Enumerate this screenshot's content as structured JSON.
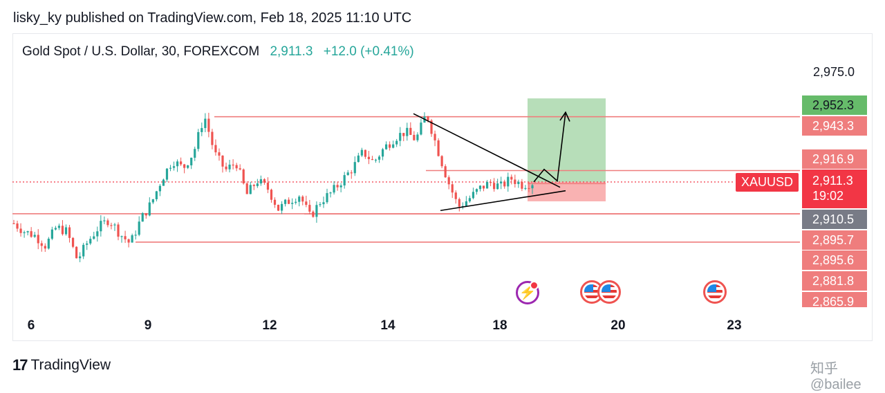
{
  "header": {
    "published_by": "lisky_ky published on TradingView.com, Feb 18, 2025 11:10 UTC",
    "symbol_desc": "Gold Spot / U.S. Dollar, 30, FOREXCOM",
    "last_price": "2,911.3",
    "change": "+12.0 (+0.41%)"
  },
  "price_scale": {
    "top_label": "2,975.0",
    "tags": [
      {
        "label": "2,952.3",
        "kind": "green"
      },
      {
        "label": "2,943.3",
        "kind": "red"
      },
      {
        "label": "2,916.9",
        "kind": "red"
      },
      {
        "label": "2,910.5",
        "kind": "gray"
      },
      {
        "label": "2,895.7",
        "kind": "red"
      },
      {
        "label": "2,895.6",
        "kind": "red"
      },
      {
        "label": "2,881.8",
        "kind": "red"
      },
      {
        "label": "2,865.9",
        "kind": "red"
      }
    ],
    "last": {
      "symbol": "XAUUSD",
      "price": "2,911.3",
      "countdown": "19:02"
    }
  },
  "time_scale": [
    "6",
    "9",
    "12",
    "14",
    "18",
    "20",
    "23"
  ],
  "events": [
    {
      "name": "earnings-event-icon",
      "type": "bolt"
    },
    {
      "name": "us-flag-event-icon",
      "type": "flag"
    },
    {
      "name": "us-flag-event-icon",
      "type": "flag"
    },
    {
      "name": "us-flag-event-icon",
      "type": "flag"
    }
  ],
  "footer": {
    "brand": "TradingView",
    "brand_mark": "17",
    "watermark": "知乎 @bailee"
  },
  "colors": {
    "up": "#26a69a",
    "down": "#ef5350",
    "level_line": "#ef7d7d",
    "target_zone": "#a5d6a7",
    "stop_zone": "#f8a5a5"
  },
  "chart_data": {
    "type": "candlestick",
    "symbol": "XAUUSD",
    "timeframe": "30",
    "ylim": [
      2858,
      2978
    ],
    "x_ticks": [
      "6",
      "9",
      "12",
      "14",
      "18",
      "20",
      "23"
    ],
    "horizontal_levels": [
      2943.3,
      2916.9,
      2910.5,
      2895.7,
      2895.6,
      2881.8
    ],
    "long_position": {
      "entry": 2911.3,
      "target": 2952.3,
      "stop": 2901.8
    },
    "triangle": [
      [
        2944.8,
        2897.3
      ],
      [
        2908.7
      ]
    ],
    "close_path": [
      2891,
      2887,
      2885,
      2880,
      2889,
      2887,
      2873,
      2882,
      2889,
      2893,
      2886,
      2881,
      2893,
      2901,
      2913,
      2922,
      2918,
      2926,
      2944,
      2925,
      2917,
      2921,
      2905,
      2912,
      2908,
      2898,
      2902,
      2905,
      2894,
      2902,
      2906,
      2912,
      2918,
      2926,
      2921,
      2928,
      2933,
      2936,
      2932,
      2945,
      2928,
      2912,
      2899,
      2903,
      2908,
      2911,
      2909,
      2913,
      2910,
      2911
    ]
  }
}
